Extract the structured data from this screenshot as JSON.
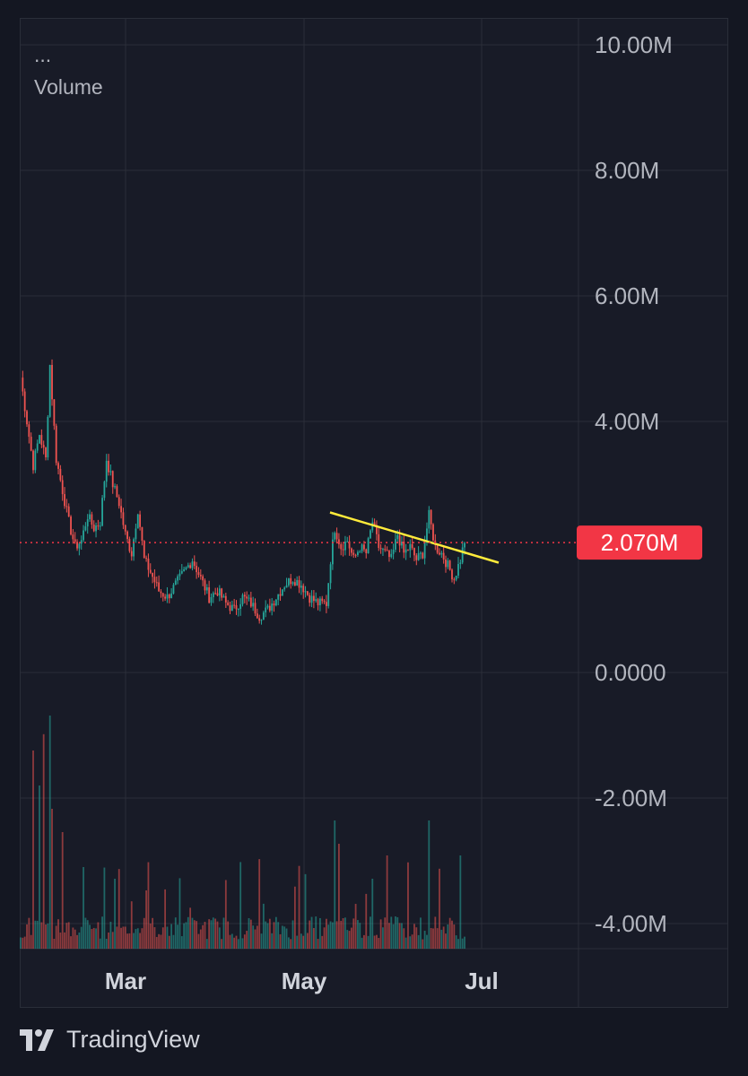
{
  "legend": {
    "dots": "...",
    "title": "Volume"
  },
  "brand": {
    "name": "TradingView",
    "logo": "tradingview-logo-icon"
  },
  "colors": {
    "up": "#26a69a",
    "down": "#ef5350",
    "trendline": "#ffeb3b",
    "price_badge": "#f23645",
    "grid": "#2a2e39",
    "background": "#181b27"
  },
  "chart_data": {
    "type": "candlestick",
    "title": "",
    "ylabel": "",
    "xlabel": "",
    "y_tick_labels": [
      "10.00M",
      "8.00M",
      "6.00M",
      "4.00M",
      "0.0000",
      "-2.00M",
      "-4.00M"
    ],
    "y_ticks": [
      10000000,
      8000000,
      6000000,
      4000000,
      0,
      -2000000,
      -4000000
    ],
    "ylim": [
      -4400000,
      10400000
    ],
    "x_tick_labels": [
      "Mar",
      "May",
      "Jul"
    ],
    "grid": true,
    "current_value": 2070000,
    "current_value_label": "2.070M",
    "close_anchors": [
      {
        "i": 0,
        "v": 4.7
      },
      {
        "i": 3,
        "v": 4.0
      },
      {
        "i": 6,
        "v": 3.3
      },
      {
        "i": 9,
        "v": 3.8
      },
      {
        "i": 12,
        "v": 3.4
      },
      {
        "i": 14,
        "v": 4.9
      },
      {
        "i": 17,
        "v": 3.4
      },
      {
        "i": 20,
        "v": 2.9
      },
      {
        "i": 23,
        "v": 2.4
      },
      {
        "i": 26,
        "v": 2.0
      },
      {
        "i": 29,
        "v": 2.1
      },
      {
        "i": 32,
        "v": 2.5
      },
      {
        "i": 35,
        "v": 2.3
      },
      {
        "i": 38,
        "v": 2.4
      },
      {
        "i": 41,
        "v": 3.4
      },
      {
        "i": 44,
        "v": 3.0
      },
      {
        "i": 47,
        "v": 2.7
      },
      {
        "i": 50,
        "v": 2.2
      },
      {
        "i": 53,
        "v": 1.9
      },
      {
        "i": 56,
        "v": 2.6
      },
      {
        "i": 59,
        "v": 1.8
      },
      {
        "i": 62,
        "v": 1.6
      },
      {
        "i": 66,
        "v": 1.3
      },
      {
        "i": 70,
        "v": 1.2
      },
      {
        "i": 74,
        "v": 1.4
      },
      {
        "i": 78,
        "v": 1.6
      },
      {
        "i": 82,
        "v": 1.8
      },
      {
        "i": 86,
        "v": 1.5
      },
      {
        "i": 90,
        "v": 1.2
      },
      {
        "i": 94,
        "v": 1.3
      },
      {
        "i": 98,
        "v": 1.1
      },
      {
        "i": 102,
        "v": 1.0
      },
      {
        "i": 106,
        "v": 1.2
      },
      {
        "i": 110,
        "v": 1.1
      },
      {
        "i": 114,
        "v": 0.9
      },
      {
        "i": 118,
        "v": 1.0
      },
      {
        "i": 122,
        "v": 1.2
      },
      {
        "i": 126,
        "v": 1.4
      },
      {
        "i": 130,
        "v": 1.5
      },
      {
        "i": 134,
        "v": 1.4
      },
      {
        "i": 138,
        "v": 1.2
      },
      {
        "i": 142,
        "v": 1.1
      },
      {
        "i": 146,
        "v": 1.1
      },
      {
        "i": 148,
        "v": 1.8
      },
      {
        "i": 150,
        "v": 2.3
      },
      {
        "i": 153,
        "v": 2.0
      },
      {
        "i": 156,
        "v": 2.1
      },
      {
        "i": 159,
        "v": 1.8
      },
      {
        "i": 162,
        "v": 2.0
      },
      {
        "i": 165,
        "v": 1.9
      },
      {
        "i": 168,
        "v": 2.4
      },
      {
        "i": 171,
        "v": 2.0
      },
      {
        "i": 174,
        "v": 1.9
      },
      {
        "i": 177,
        "v": 1.8
      },
      {
        "i": 180,
        "v": 2.2
      },
      {
        "i": 183,
        "v": 1.9
      },
      {
        "i": 186,
        "v": 2.0
      },
      {
        "i": 189,
        "v": 1.8
      },
      {
        "i": 192,
        "v": 1.9
      },
      {
        "i": 195,
        "v": 2.5
      },
      {
        "i": 198,
        "v": 2.0
      },
      {
        "i": 201,
        "v": 1.9
      },
      {
        "i": 204,
        "v": 1.7
      },
      {
        "i": 207,
        "v": 1.5
      },
      {
        "i": 210,
        "v": 1.8
      },
      {
        "i": 212,
        "v": 2.1
      }
    ],
    "volume_spikes": [
      {
        "i": 6,
        "v": 0.85
      },
      {
        "i": 9,
        "v": 0.7
      },
      {
        "i": 11,
        "v": 0.92
      },
      {
        "i": 14,
        "v": 1.0
      },
      {
        "i": 15,
        "v": 0.6
      },
      {
        "i": 20,
        "v": 0.5
      },
      {
        "i": 30,
        "v": 0.35
      },
      {
        "i": 45,
        "v": 0.3
      },
      {
        "i": 60,
        "v": 0.25
      },
      {
        "i": 150,
        "v": 0.55
      },
      {
        "i": 152,
        "v": 0.45
      },
      {
        "i": 168,
        "v": 0.3
      },
      {
        "i": 175,
        "v": 0.4
      },
      {
        "i": 195,
        "v": 0.55
      },
      {
        "i": 210,
        "v": 0.4
      }
    ],
    "trendline": {
      "from": {
        "i": 148,
        "v": 2.55
      },
      "to": {
        "i": 228,
        "v": 1.75
      }
    }
  }
}
